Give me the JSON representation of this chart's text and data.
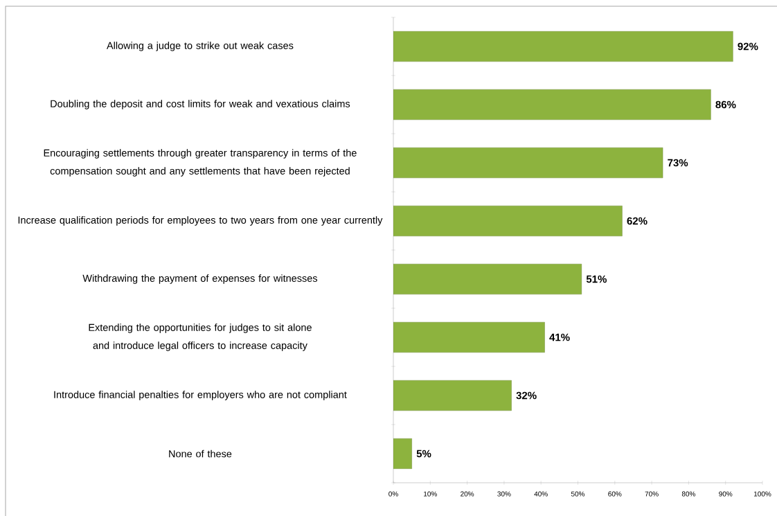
{
  "chart_data": {
    "type": "bar",
    "orientation": "horizontal",
    "categories": [
      "Allowing a judge to strike out weak cases",
      "Doubling the deposit and cost limits for weak and vexatious claims",
      "Encouraging settlements through greater transparency in terms of the compensation sought and any settlements that have been rejected",
      "Increase qualification periods for employees to two years from one year currently",
      "Withdrawing the payment of expenses for witnesses",
      "Extending the opportunities for judges to sit alone and introduce legal officers to increase capacity",
      "Introduce financial penalties for employers who are not compliant",
      "None of these"
    ],
    "values": [
      92,
      86,
      73,
      62,
      51,
      41,
      32,
      5
    ],
    "value_labels": [
      "92%",
      "86%",
      "73%",
      "62%",
      "51%",
      "41%",
      "32%",
      "5%"
    ],
    "color": "#8db33e",
    "xlim": [
      0,
      100
    ],
    "xticks": [
      {
        "value": 0,
        "label": "0%"
      },
      {
        "value": 10,
        "label": "10%"
      },
      {
        "value": 20,
        "label": "20%"
      },
      {
        "value": 30,
        "label": "30%"
      },
      {
        "value": 40,
        "label": "40%"
      },
      {
        "value": 50,
        "label": "50%"
      },
      {
        "value": 60,
        "label": "60%"
      },
      {
        "value": 70,
        "label": "70%"
      },
      {
        "value": 80,
        "label": "80%"
      },
      {
        "value": 90,
        "label": "90%"
      },
      {
        "value": 100,
        "label": "100%"
      }
    ],
    "grid": false
  }
}
